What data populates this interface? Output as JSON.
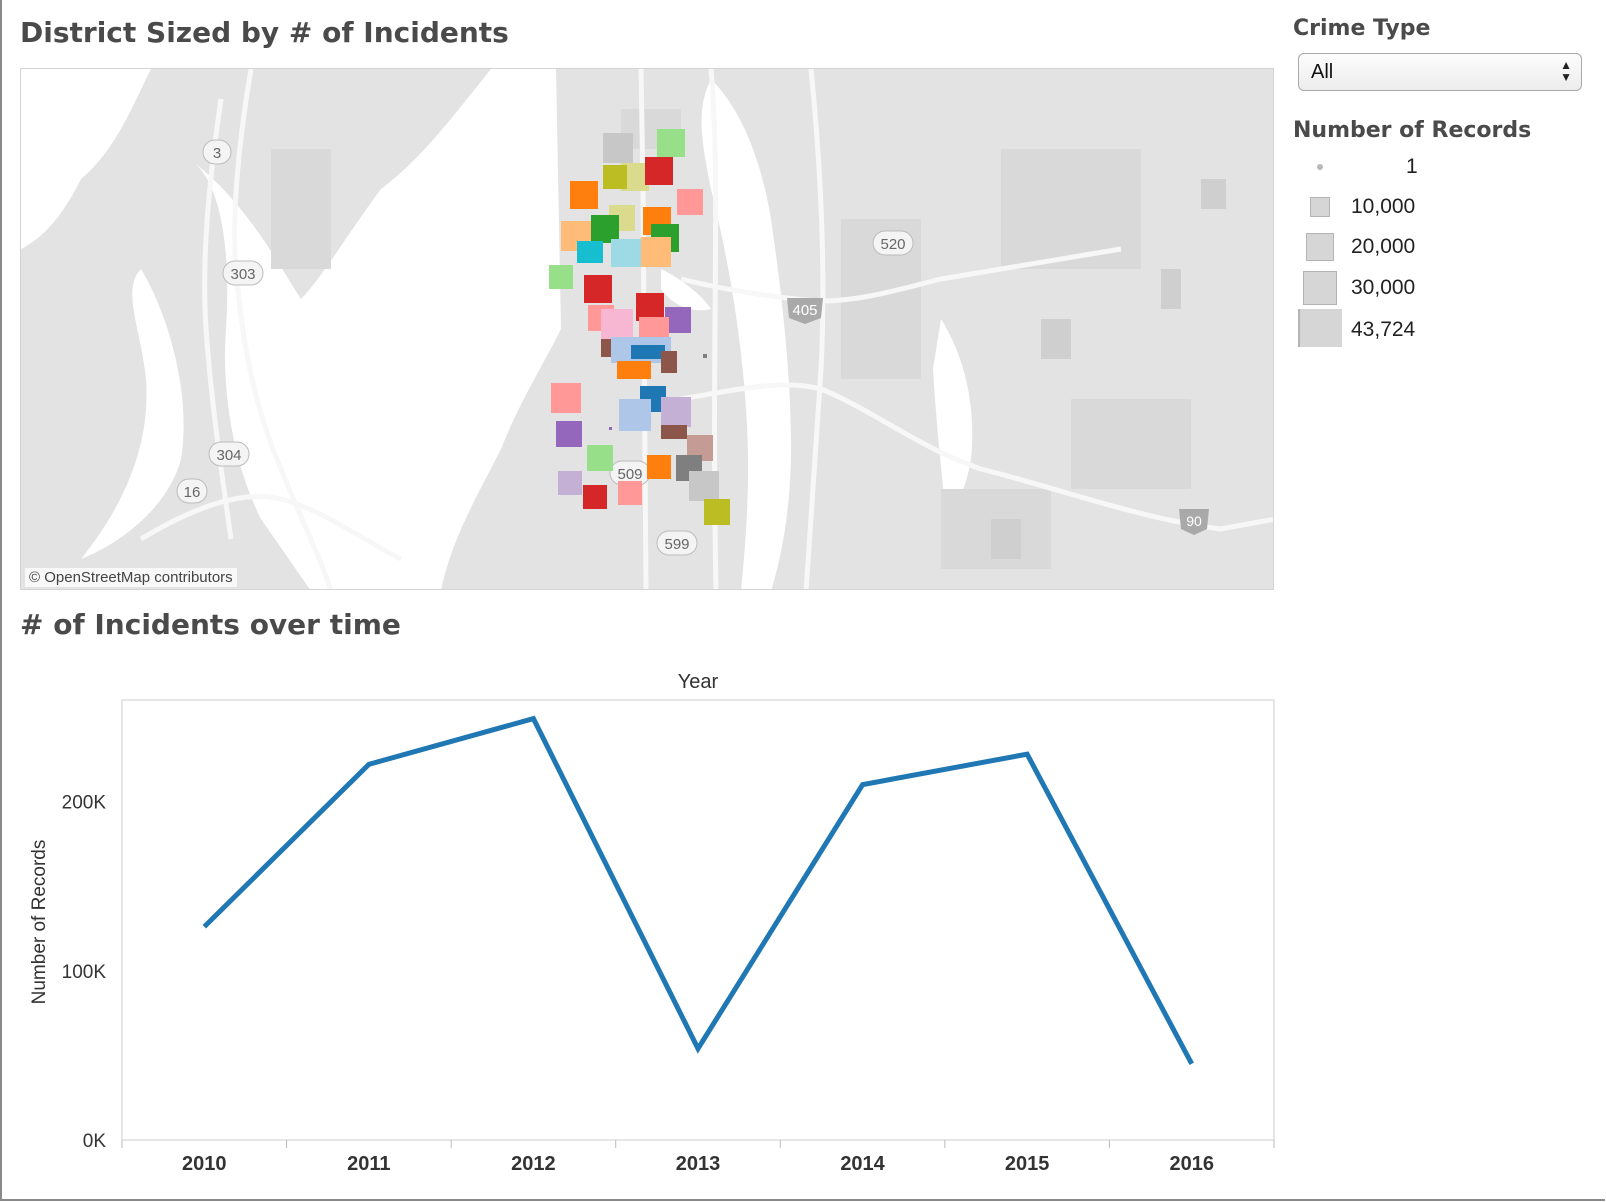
{
  "map_panel": {
    "title": "District Sized by # of Incidents",
    "attribution": "© OpenStreetMap contributors",
    "road_labels": [
      "3",
      "303",
      "304",
      "16",
      "520",
      "405",
      "509",
      "599",
      "90"
    ],
    "district_colors": [
      "#c7c7c7",
      "#98df8a",
      "#dbdb8d",
      "#bcbd22",
      "#d62728",
      "#ff7f0e",
      "#ff9896",
      "#2ca02c",
      "#ffbb78",
      "#17becf",
      "#9edae5",
      "#9467bd",
      "#f7b6d2",
      "#aec7e8",
      "#1f77b4",
      "#8c564b",
      "#c5b0d5",
      "#c49c94",
      "#7f7f7f"
    ]
  },
  "filter": {
    "label": "Crime Type",
    "selected": "All"
  },
  "size_legend": {
    "label": "Number of Records",
    "items": [
      "1",
      "10,000",
      "20,000",
      "30,000",
      "43,724"
    ]
  },
  "line_panel": {
    "title": "# of Incidents over time"
  },
  "chart_data": {
    "type": "line",
    "title": "",
    "x": [
      "2010",
      "2011",
      "2012",
      "2013",
      "2014",
      "2015",
      "2016"
    ],
    "series": [
      {
        "values": [
          126000,
          222000,
          249000,
          54000,
          210000,
          228000,
          45000
        ]
      }
    ],
    "xlabel": "Year",
    "ylabel": "Number of Records",
    "ylim": [
      0,
      260000
    ],
    "yticks": [
      "0K",
      "100K",
      "200K"
    ],
    "grid": false,
    "line_color": "#1f77b4"
  }
}
